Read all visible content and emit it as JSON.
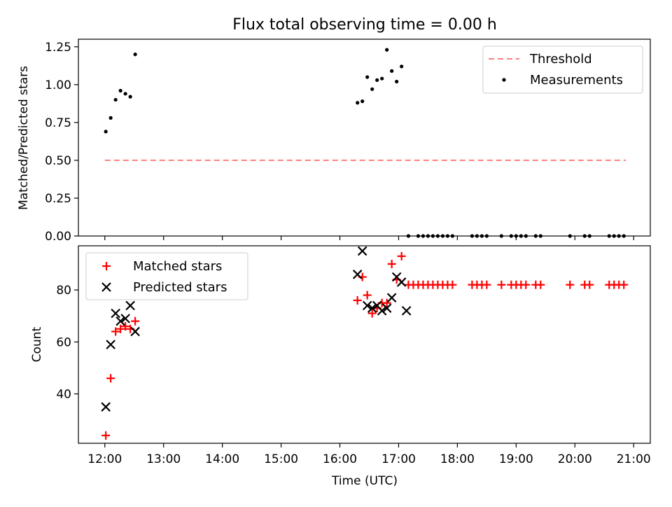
{
  "title": "Flux total observing time = 0.00 h",
  "chart_data": [
    {
      "type": "scatter",
      "panel": "top",
      "ylabel": "Matched/Predicted stars",
      "xlabel": "",
      "xlim": [
        "11:33",
        "21:17"
      ],
      "ylim": [
        0,
        1.3
      ],
      "yticks": [
        0,
        0.25,
        0.5,
        0.75,
        1.0,
        1.25
      ],
      "ytick_labels": [
        "0.00",
        "0.25",
        "0.50",
        "0.75",
        "1.00",
        "1.25"
      ],
      "grid": false,
      "legend_position": "top-right",
      "series": [
        {
          "name": "Threshold",
          "kind": "line-dashed",
          "color": "#ff7f7f",
          "x": [
            "12:00",
            "20:52"
          ],
          "y": [
            0.5,
            0.5
          ]
        },
        {
          "name": "Measurements",
          "kind": "dot",
          "color": "#000000",
          "x": [
            "12:01",
            "12:06",
            "12:11",
            "12:16",
            "12:21",
            "12:26",
            "12:31",
            "16:18",
            "16:23",
            "16:28",
            "16:33",
            "16:38",
            "16:43",
            "16:48",
            "16:53",
            "16:58",
            "17:03",
            "17:10",
            "17:20",
            "17:25",
            "17:30",
            "17:35",
            "17:40",
            "17:45",
            "17:50",
            "17:55",
            "18:15",
            "18:20",
            "18:25",
            "18:30",
            "18:45",
            "18:55",
            "19:00",
            "19:05",
            "19:10",
            "19:20",
            "19:25",
            "19:55",
            "20:10",
            "20:15",
            "20:35",
            "20:40",
            "20:45",
            "20:50"
          ],
          "y": [
            0.69,
            0.78,
            0.9,
            0.96,
            0.94,
            0.92,
            1.2,
            0.88,
            0.89,
            1.05,
            0.97,
            1.03,
            1.04,
            1.23,
            1.09,
            1.02,
            1.12,
            0,
            0,
            0,
            0,
            0,
            0,
            0,
            0,
            0,
            0,
            0,
            0,
            0,
            0,
            0,
            0,
            0,
            0,
            0,
            0,
            0,
            0,
            0,
            0,
            0,
            0,
            0
          ]
        }
      ]
    },
    {
      "type": "scatter",
      "panel": "bottom",
      "ylabel": "Count",
      "xlabel": "Time (UTC)",
      "xlim": [
        "11:33",
        "21:17"
      ],
      "ylim": [
        21,
        97
      ],
      "yticks": [
        40,
        60,
        80
      ],
      "xticks": [
        "12:00",
        "13:00",
        "14:00",
        "15:00",
        "16:00",
        "17:00",
        "18:00",
        "19:00",
        "20:00",
        "21:00"
      ],
      "grid": false,
      "legend_position": "top-left",
      "series": [
        {
          "name": "Matched stars",
          "kind": "plus",
          "color": "#ff0000",
          "x": [
            "12:01",
            "12:06",
            "12:11",
            "12:16",
            "12:21",
            "12:26",
            "12:31",
            "16:18",
            "16:23",
            "16:28",
            "16:33",
            "16:38",
            "16:43",
            "16:48",
            "16:53",
            "16:58",
            "17:03",
            "17:10",
            "17:15",
            "17:20",
            "17:25",
            "17:30",
            "17:35",
            "17:40",
            "17:45",
            "17:50",
            "17:55",
            "18:15",
            "18:20",
            "18:25",
            "18:30",
            "18:45",
            "18:55",
            "19:00",
            "19:05",
            "19:10",
            "19:20",
            "19:25",
            "19:55",
            "20:10",
            "20:15",
            "20:35",
            "20:40",
            "20:45",
            "20:50"
          ],
          "y": [
            24,
            46,
            64,
            65,
            66,
            65,
            68,
            76,
            85,
            78,
            71,
            73,
            75,
            75,
            90,
            84,
            93,
            82,
            82,
            82,
            82,
            82,
            82,
            82,
            82,
            82,
            82,
            82,
            82,
            82,
            82,
            82,
            82,
            82,
            82,
            82,
            82,
            82,
            82,
            82,
            82,
            82,
            82,
            82,
            82
          ]
        },
        {
          "name": "Predicted stars",
          "kind": "cross",
          "color": "#000000",
          "x": [
            "12:01",
            "12:06",
            "12:11",
            "12:16",
            "12:21",
            "12:26",
            "12:31",
            "16:18",
            "16:23",
            "16:28",
            "16:33",
            "16:38",
            "16:43",
            "16:48",
            "16:53",
            "16:58",
            "17:03",
            "17:08"
          ],
          "y": [
            35,
            59,
            71,
            68,
            69,
            74,
            64,
            86,
            95,
            74,
            73,
            74,
            72,
            73,
            77,
            85,
            83,
            72
          ]
        }
      ]
    }
  ]
}
